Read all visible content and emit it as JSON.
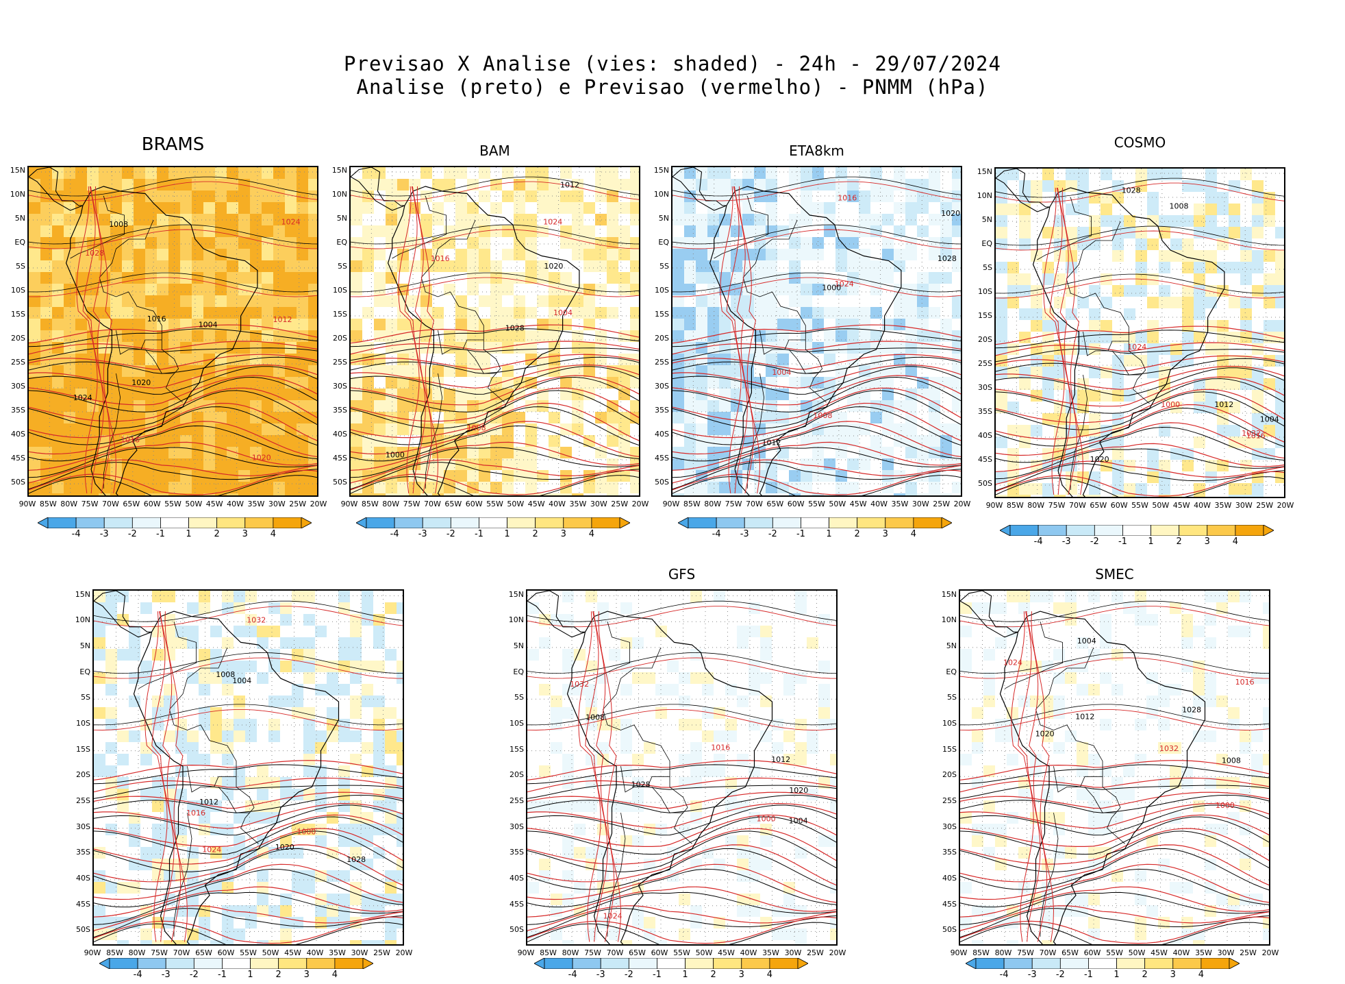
{
  "title": {
    "line1": "Previsao X Analise (vies: shaded) - 24h - 29/07/2024",
    "line2": "Analise (preto) e Previsao (vermelho) - PNMM (hPa)"
  },
  "colors": {
    "analysis_contour": "#000000",
    "forecast_contour": "#d62828",
    "bias_neg4": "#4aa7e8",
    "bias_neg3": "#8ec8f0",
    "bias_neg2": "#c9e9f7",
    "bias_neg1": "#eaf7fc",
    "bias_pos1": "#fff6c2",
    "bias_pos2": "#ffe680",
    "bias_pos3": "#fcc94a",
    "bias_pos4": "#f5a50c"
  },
  "axes": {
    "lat_labels": [
      "15N",
      "10N",
      "5N",
      "EQ",
      "5S",
      "10S",
      "15S",
      "20S",
      "25S",
      "30S",
      "35S",
      "40S",
      "45S",
      "50S"
    ],
    "lon_labels": [
      "90W",
      "85W",
      "80W",
      "75W",
      "70W",
      "65W",
      "60W",
      "55W",
      "50W",
      "45W",
      "40W",
      "35W",
      "30W",
      "25W",
      "20W"
    ]
  },
  "colorbar": {
    "labels": [
      "-4",
      "-3",
      "-2",
      "-1",
      "1",
      "2",
      "3",
      "4"
    ]
  },
  "panels": [
    {
      "name": "BRAMS",
      "bias": "warm-strong",
      "labels": [
        "1008",
        "1012",
        "1016",
        "1020",
        "1024",
        "1028",
        "1004",
        "1016",
        "1020",
        "1024"
      ]
    },
    {
      "name": "BAM",
      "bias": "warm",
      "labels": [
        "1012",
        "1016",
        "1020",
        "1024",
        "1028",
        "1004",
        "1000",
        "1008"
      ]
    },
    {
      "name": "ETA8km",
      "bias": "cold",
      "labels": [
        "1012",
        "1016",
        "1020",
        "1024",
        "1028",
        "1004",
        "1000",
        "1008"
      ]
    },
    {
      "name": "COSMO",
      "bias": "mixed",
      "labels": [
        "1012",
        "1016",
        "1020",
        "1024",
        "1028",
        "1032",
        "1004",
        "1000",
        "1008"
      ]
    },
    {
      "name": "",
      "bias": "mixed-cold",
      "labels": [
        "1012",
        "1016",
        "1020",
        "1024",
        "1028",
        "1032",
        "1004",
        "1000",
        "1008"
      ]
    },
    {
      "name": "GFS",
      "bias": "weak",
      "labels": [
        "1012",
        "1016",
        "1020",
        "1024",
        "1028",
        "1032",
        "1004",
        "1000",
        "1008"
      ]
    },
    {
      "name": "SMEC",
      "bias": "weak",
      "labels": [
        "1012",
        "1016",
        "1020",
        "1024",
        "1028",
        "1032",
        "1004",
        "1000",
        "1008"
      ]
    }
  ]
}
